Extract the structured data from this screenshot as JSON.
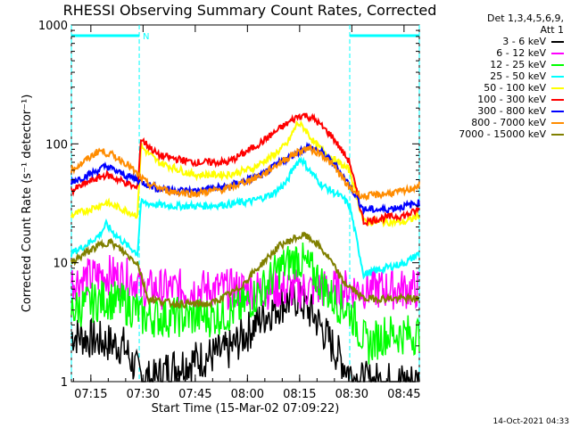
{
  "footer_timestamp": "14-Oct-2021 04:33",
  "chart_data": {
    "type": "line",
    "title": "RHESSI Observing Summary Count Rates, Corrected",
    "xlabel": "Start Time (15-Mar-02 07:09:22)",
    "ylabel": "Corrected Count Rate (s⁻¹ detector⁻¹)",
    "yscale": "log",
    "ylim": [
      1,
      1000
    ],
    "xlim_minutes": [
      0,
      100
    ],
    "x_ticks": [
      {
        "label": "07:15",
        "minute": 5.6
      },
      {
        "label": "07:30",
        "minute": 20.6
      },
      {
        "label": "07:45",
        "minute": 35.6
      },
      {
        "label": "08:00",
        "minute": 50.6
      },
      {
        "label": "08:15",
        "minute": 65.6
      },
      {
        "label": "08:30",
        "minute": 80.6
      },
      {
        "label": "08:45",
        "minute": 95.6
      }
    ],
    "y_ticks": [
      {
        "label": "1",
        "value": 1
      },
      {
        "label": "10",
        "value": 10
      },
      {
        "label": "100",
        "value": 100
      },
      {
        "label": "1000",
        "value": 1000
      }
    ],
    "legend_header": [
      "Det 1,3,4,5,6,9,",
      "Att 1"
    ],
    "annotation": "N",
    "night_intervals": [
      [
        0,
        19.5
      ],
      [
        80,
        100
      ]
    ],
    "series": [
      {
        "name": "3 - 6 keV",
        "color": "#000000",
        "x": [
          0,
          8,
          15,
          19,
          23,
          28,
          35,
          45,
          50,
          55,
          60,
          65,
          70,
          75,
          80,
          83,
          88,
          95,
          100
        ],
        "y": [
          2.5,
          2.2,
          2.0,
          1.2,
          1.0,
          1.3,
          1.5,
          1.8,
          2.5,
          3.5,
          4.5,
          5.0,
          3.5,
          2.0,
          1.2,
          1.0,
          1.0,
          1.0,
          1.0
        ]
      },
      {
        "name": "6 - 12 keV",
        "color": "#ff00ff",
        "x": [
          0,
          5,
          10,
          15,
          19,
          20,
          30,
          40,
          50,
          55,
          60,
          65,
          70,
          80,
          85,
          90,
          100
        ],
        "y": [
          7.0,
          7.5,
          8.0,
          7.5,
          7.0,
          6.0,
          6.0,
          6.0,
          6.0,
          6.0,
          6.0,
          6.0,
          6.0,
          6.0,
          6.0,
          6.0,
          6.0
        ]
      },
      {
        "name": "12 - 25 keV",
        "color": "#00ff00",
        "x": [
          0,
          5,
          10,
          15,
          19,
          20,
          30,
          40,
          48,
          55,
          60,
          65,
          70,
          75,
          80,
          85,
          90,
          100
        ],
        "y": [
          4.0,
          4.5,
          5.0,
          4.5,
          4.0,
          3.5,
          3.5,
          3.5,
          4.0,
          6.0,
          9.0,
          11.0,
          8.0,
          5.0,
          4.0,
          2.0,
          2.5,
          2.5
        ]
      },
      {
        "name": "25 - 50 keV",
        "color": "#00ffff",
        "x": [
          0,
          4,
          8,
          10,
          12,
          16,
          19,
          20,
          28,
          38,
          45,
          52,
          58,
          62,
          64,
          66,
          68,
          72,
          78,
          80,
          84,
          90,
          96,
          100
        ],
        "y": [
          12,
          14,
          17,
          21,
          18,
          14,
          12,
          32,
          30,
          30,
          31,
          33,
          38,
          48,
          65,
          75,
          62,
          45,
          35,
          30,
          8,
          9,
          10,
          12
        ]
      },
      {
        "name": "50 - 100 keV",
        "color": "#ffff00",
        "x": [
          0,
          5,
          10,
          15,
          19,
          20,
          25,
          35,
          45,
          52,
          58,
          62,
          65,
          67,
          70,
          75,
          80,
          84,
          90,
          96,
          100
        ],
        "y": [
          25,
          28,
          32,
          28,
          25,
          95,
          70,
          55,
          55,
          62,
          80,
          100,
          150,
          135,
          100,
          75,
          60,
          22,
          22,
          22,
          25
        ]
      },
      {
        "name": "100 - 300 keV",
        "color": "#ff0000",
        "x": [
          0,
          5,
          10,
          15,
          19,
          20,
          25,
          35,
          45,
          50,
          55,
          60,
          65,
          67,
          70,
          75,
          80,
          84,
          90,
          96,
          100
        ],
        "y": [
          40,
          48,
          55,
          48,
          42,
          110,
          80,
          70,
          70,
          85,
          105,
          135,
          170,
          175,
          160,
          115,
          70,
          22,
          24,
          25,
          28
        ]
      },
      {
        "name": "300 - 800 keV",
        "color": "#0000ff",
        "x": [
          0,
          5,
          10,
          15,
          19,
          20,
          25,
          35,
          45,
          55,
          60,
          65,
          68,
          72,
          76,
          80,
          84,
          90,
          96,
          100
        ],
        "y": [
          48,
          55,
          65,
          55,
          50,
          48,
          42,
          40,
          44,
          55,
          70,
          85,
          95,
          85,
          65,
          45,
          28,
          28,
          30,
          32
        ]
      },
      {
        "name": "800 - 7000 keV",
        "color": "#ff8c00",
        "x": [
          0,
          4,
          8,
          12,
          16,
          19,
          22,
          28,
          35,
          45,
          55,
          60,
          65,
          68,
          72,
          76,
          80,
          84,
          90,
          96,
          100
        ],
        "y": [
          60,
          72,
          88,
          80,
          68,
          55,
          46,
          40,
          38,
          42,
          55,
          70,
          85,
          92,
          82,
          62,
          42,
          36,
          38,
          40,
          45
        ]
      },
      {
        "name": "7000 - 15000 keV",
        "color": "#808000",
        "x": [
          0,
          4,
          8,
          11,
          14,
          17,
          19,
          22,
          30,
          40,
          48,
          55,
          60,
          64,
          67,
          70,
          74,
          78,
          84,
          90,
          100
        ],
        "y": [
          10,
          12,
          14,
          15,
          13,
          11,
          10,
          5,
          4.5,
          4.5,
          6,
          10,
          14,
          16,
          17,
          15,
          11,
          7,
          5,
          5,
          5
        ]
      }
    ]
  }
}
